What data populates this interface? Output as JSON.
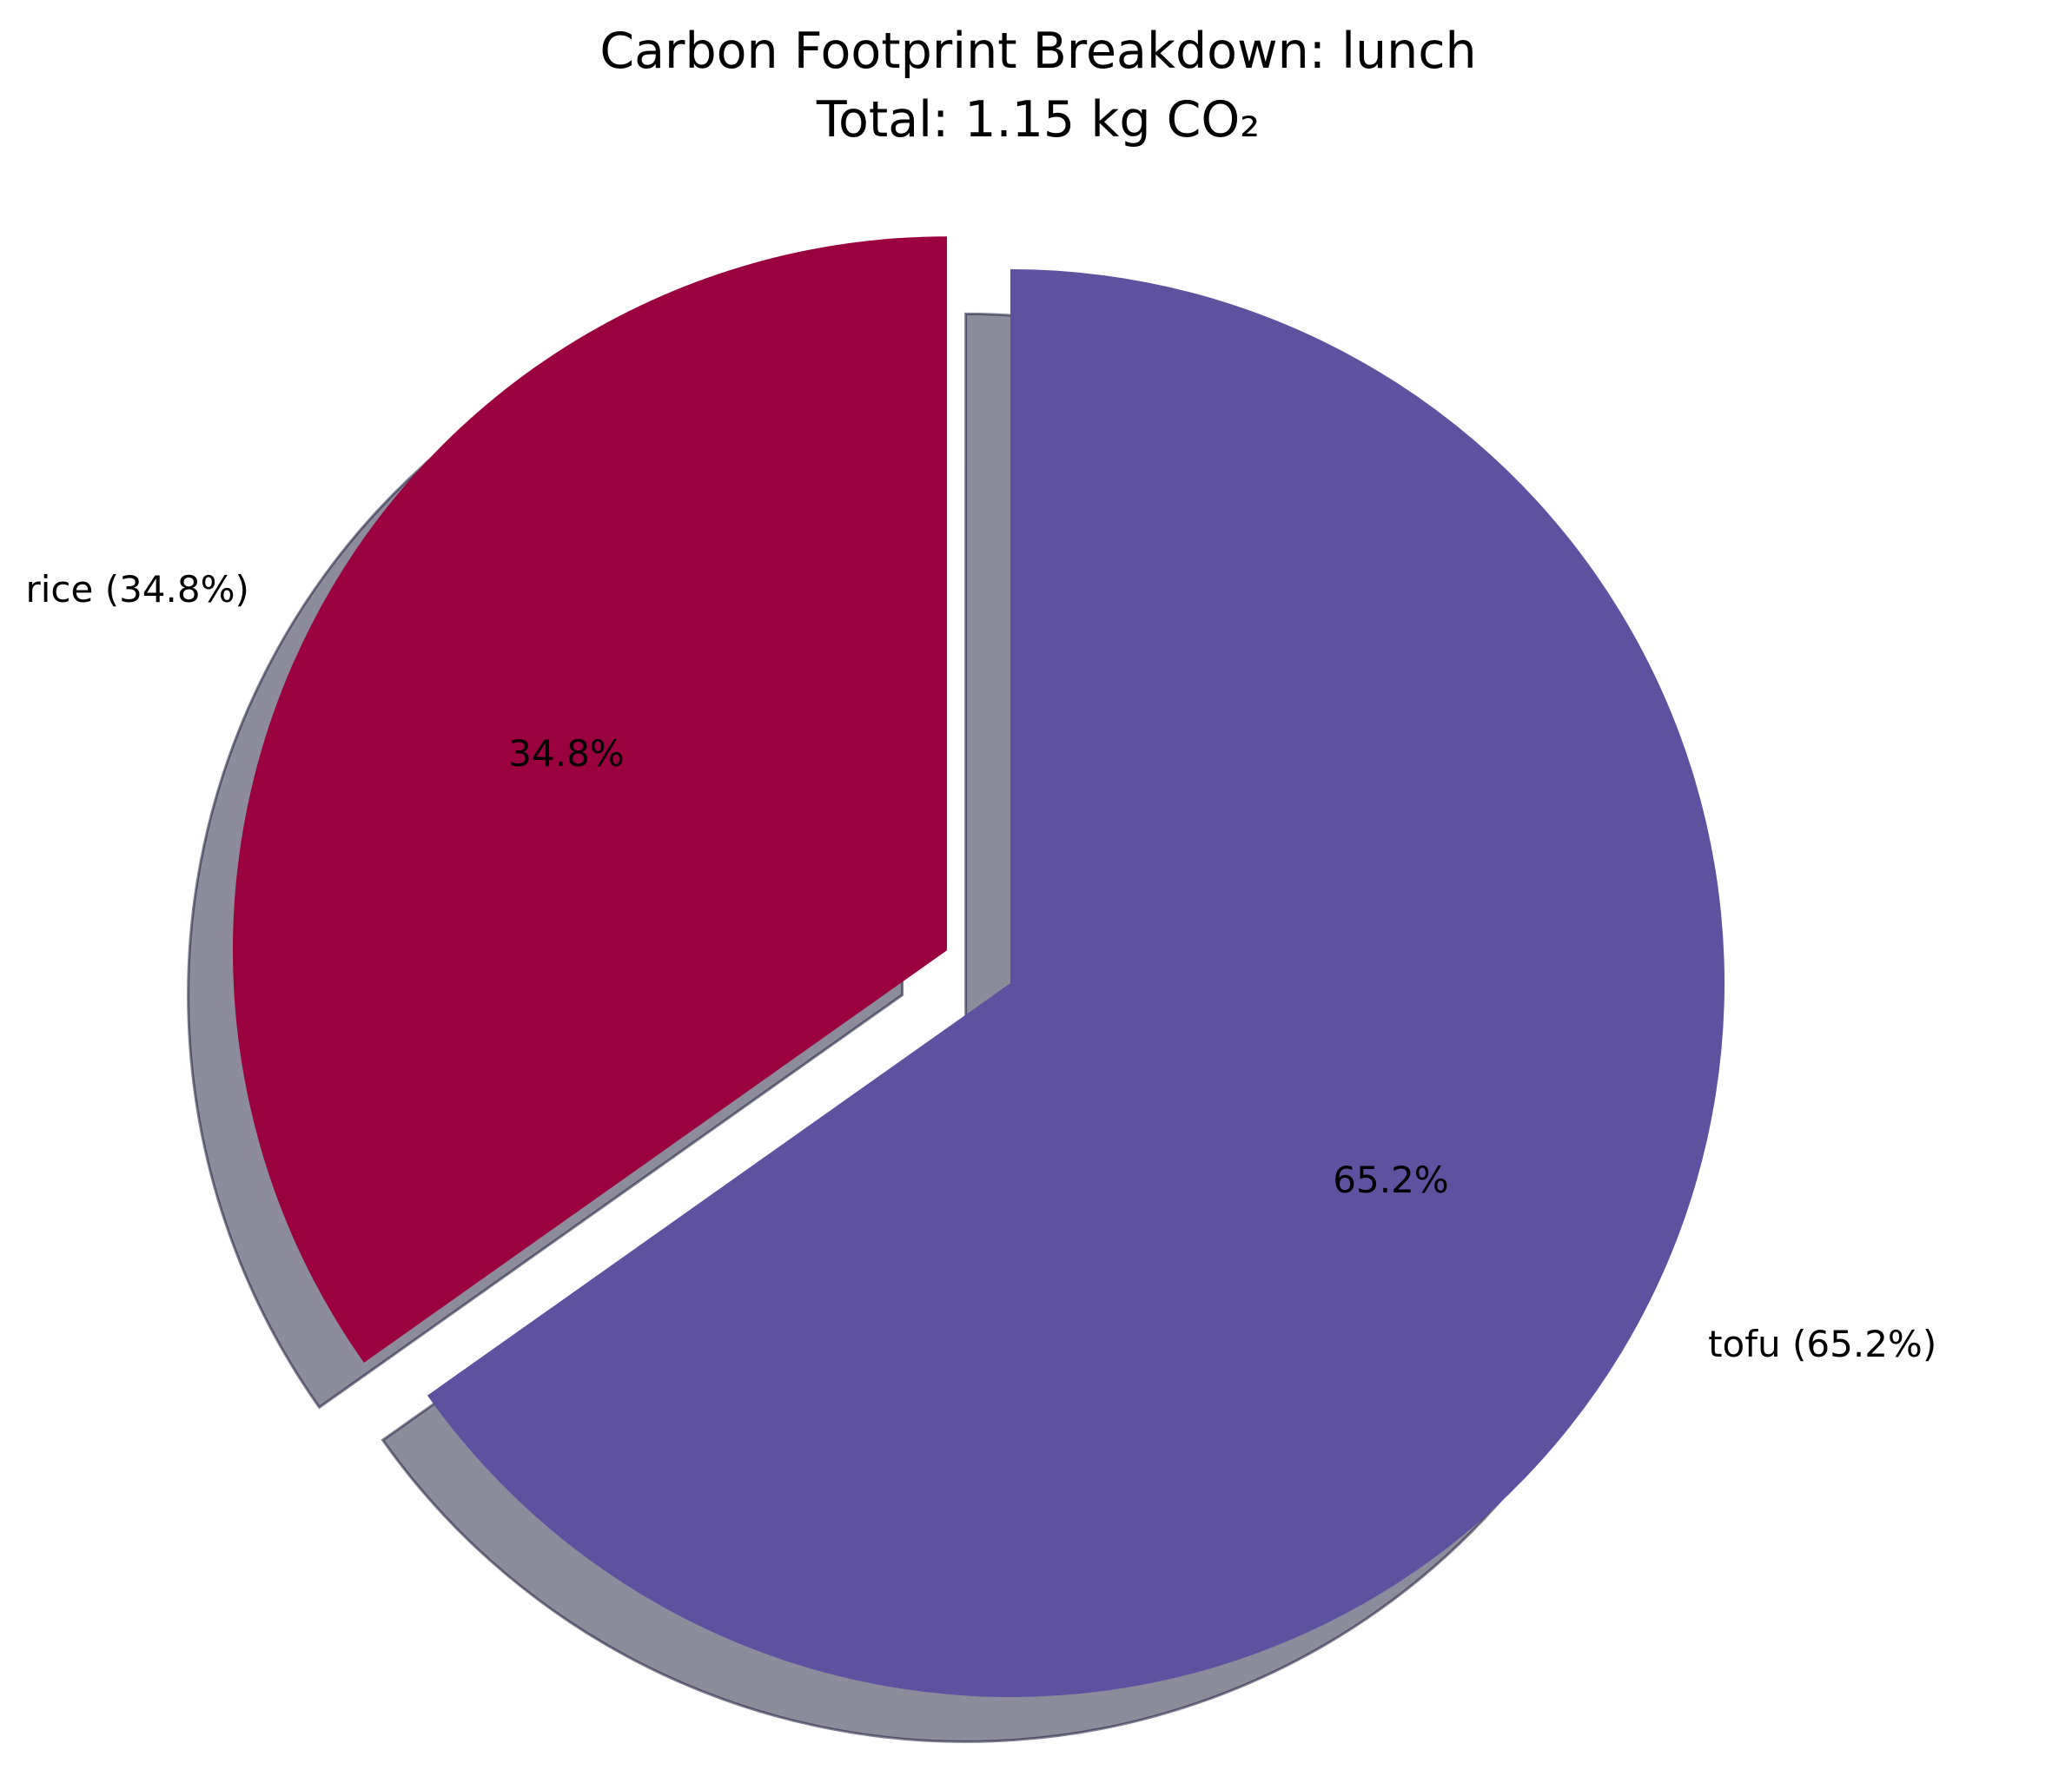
{
  "chart_data": {
    "type": "pie",
    "title": "Carbon Footprint Breakdown: lunch",
    "subtitle": "Total: 1.15 kg CO₂",
    "total_kg_co2": 1.15,
    "slices": [
      {
        "key": "rice",
        "label": "rice (34.8%)",
        "value": 34.8,
        "pct_label": "34.8%",
        "color": "#9b003f",
        "exploded": true
      },
      {
        "key": "tofu",
        "label": "tofu (65.2%)",
        "value": 65.2,
        "pct_label": "65.2%",
        "color": "#5e51a0",
        "exploded": false
      }
    ],
    "start_angle_deg": 90,
    "direction": "counterclockwise",
    "shadow": true,
    "legend": "none"
  }
}
